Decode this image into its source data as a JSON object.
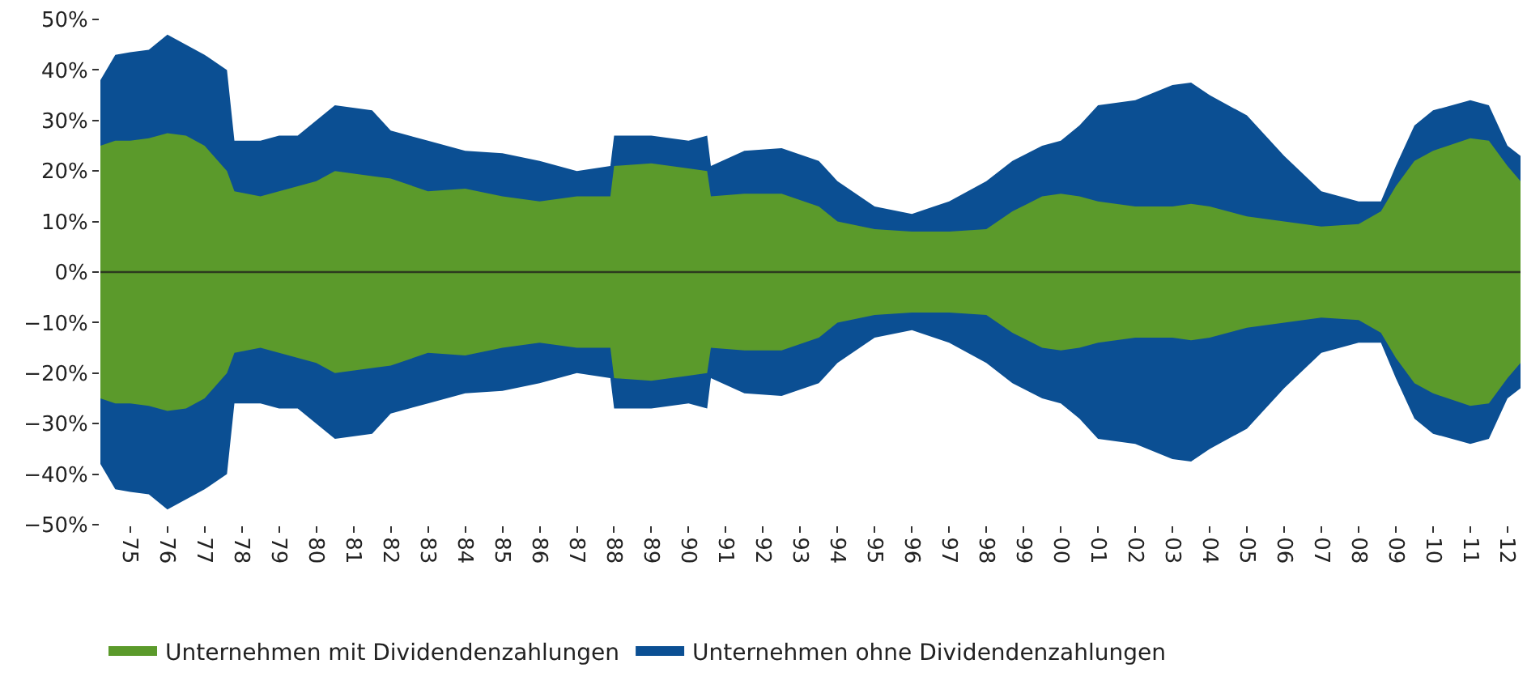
{
  "chart_data": {
    "type": "area",
    "legend": "bottom",
    "grid": false,
    "x": [
      1974.2,
      1974.6,
      1975.0,
      1975.5,
      1976.0,
      1976.5,
      1977.0,
      1977.6,
      1977.8,
      1978.5,
      1979.0,
      1979.5,
      1980.0,
      1980.5,
      1981.5,
      1982.0,
      1983.0,
      1984.0,
      1985.0,
      1986.0,
      1987.0,
      1987.9,
      1988.0,
      1989.0,
      1990.0,
      1990.5,
      1990.6,
      1991.5,
      1992.5,
      1993.5,
      1994.0,
      1995.0,
      1996.0,
      1997.0,
      1998.0,
      1998.7,
      1999.5,
      2000.0,
      2000.5,
      2001.0,
      2002.0,
      2003.0,
      2003.5,
      2004.0,
      2005.0,
      2006.0,
      2007.0,
      2008.0,
      2008.6,
      2009.0,
      2009.5,
      2010.0,
      2011.0,
      2011.5,
      2012.0,
      2012.35
    ],
    "series": [
      {
        "name": "Unternehmen mit Dividendenzahlungen",
        "color": "#5b9a2b",
        "values": [
          25,
          26,
          26,
          26.5,
          27.5,
          27,
          25,
          20,
          16,
          15,
          16,
          17,
          18,
          20,
          19,
          18.5,
          16,
          16.5,
          15,
          14,
          15,
          15,
          21,
          21.5,
          20.5,
          20,
          15,
          15.5,
          15.5,
          13,
          10,
          8.5,
          8,
          8,
          8.5,
          12,
          15,
          15.5,
          15,
          14,
          13,
          13,
          13.5,
          13,
          11,
          10,
          9,
          9.5,
          12,
          17,
          22,
          24,
          26.5,
          26,
          21,
          18
        ]
      },
      {
        "name": "Unternehmen ohne Dividendenzahlungen",
        "color": "#0b4f93",
        "values": [
          38,
          43,
          43.5,
          44,
          47,
          45,
          43,
          40,
          26,
          26,
          27,
          27,
          30,
          33,
          32,
          28,
          26,
          24,
          23.5,
          22,
          20,
          21,
          27,
          27,
          26,
          27,
          21,
          24,
          24.5,
          22,
          18,
          13,
          11.5,
          14,
          18,
          22,
          25,
          26,
          29,
          33,
          34,
          37,
          37.5,
          35,
          31,
          23,
          16,
          14,
          14,
          21,
          29,
          32,
          34,
          33,
          25,
          23
        ]
      },
      {
        "color": "#5b9a2b",
        "values": [
          -25,
          -26,
          -26,
          -26.5,
          -27.5,
          -27,
          -25,
          -20,
          -16,
          -15,
          -16,
          -17,
          -18,
          -20,
          -19,
          -18.5,
          -16,
          -16.5,
          -15,
          -14,
          -15,
          -15,
          -21,
          -21.5,
          -20.5,
          -20,
          -15,
          -15.5,
          -15.5,
          -13,
          -10,
          -8.5,
          -8,
          -8,
          -8.5,
          -12,
          -15,
          -15.5,
          -15,
          -14,
          -13,
          -13,
          -13.5,
          -13,
          -11,
          -10,
          -9,
          -9.5,
          -12,
          -17,
          -22,
          -24,
          -26.5,
          -26,
          -21,
          -18
        ]
      },
      {
        "color": "#0b4f93",
        "values": [
          -38,
          -43,
          -43.5,
          -44,
          -47,
          -45,
          -43,
          -40,
          -26,
          -26,
          -27,
          -27,
          -30,
          -33,
          -32,
          -28,
          -26,
          -24,
          -23.5,
          -22,
          -20,
          -21,
          -27,
          -27,
          -26,
          -27,
          -21,
          -24,
          -24.5,
          -22,
          -18,
          -13,
          -11.5,
          -14,
          -18,
          -22,
          -25,
          -26,
          -29,
          -33,
          -34,
          -37,
          -37.5,
          -35,
          -31,
          -23,
          -16,
          -14,
          -14,
          -21,
          -29,
          -32,
          -34,
          -33,
          -25,
          -23
        ]
      }
    ],
    "xlim": [
      1974.2,
      2012.35
    ],
    "xticks": [
      {
        "value": 1975,
        "label": "75"
      },
      {
        "value": 1976,
        "label": "76"
      },
      {
        "value": 1977,
        "label": "77"
      },
      {
        "value": 1978,
        "label": "78"
      },
      {
        "value": 1979,
        "label": "79"
      },
      {
        "value": 1980,
        "label": "80"
      },
      {
        "value": 1981,
        "label": "81"
      },
      {
        "value": 1982,
        "label": "82"
      },
      {
        "value": 1983,
        "label": "83"
      },
      {
        "value": 1984,
        "label": "84"
      },
      {
        "value": 1985,
        "label": "85"
      },
      {
        "value": 1986,
        "label": "86"
      },
      {
        "value": 1987,
        "label": "87"
      },
      {
        "value": 1988,
        "label": "88"
      },
      {
        "value": 1989,
        "label": "89"
      },
      {
        "value": 1990,
        "label": "90"
      },
      {
        "value": 1991,
        "label": "91"
      },
      {
        "value": 1992,
        "label": "92"
      },
      {
        "value": 1993,
        "label": "93"
      },
      {
        "value": 1994,
        "label": "94"
      },
      {
        "value": 1995,
        "label": "95"
      },
      {
        "value": 1996,
        "label": "96"
      },
      {
        "value": 1997,
        "label": "97"
      },
      {
        "value": 1998,
        "label": "98"
      },
      {
        "value": 1999,
        "label": "99"
      },
      {
        "value": 2000,
        "label": "00"
      },
      {
        "value": 2001,
        "label": "01"
      },
      {
        "value": 2002,
        "label": "02"
      },
      {
        "value": 2003,
        "label": "03"
      },
      {
        "value": 2004,
        "label": "04"
      },
      {
        "value": 2005,
        "label": "05"
      },
      {
        "value": 2006,
        "label": "06"
      },
      {
        "value": 2007,
        "label": "07"
      },
      {
        "value": 2008,
        "label": "08"
      },
      {
        "value": 2009,
        "label": "09"
      },
      {
        "value": 2010,
        "label": "10"
      },
      {
        "value": 2011,
        "label": "11"
      },
      {
        "value": 2012,
        "label": "12"
      }
    ],
    "ylim": [
      -50,
      50
    ],
    "yticks": [
      {
        "value": -50,
        "label": "−50%"
      },
      {
        "value": -40,
        "label": "−40%"
      },
      {
        "value": -30,
        "label": "−30%"
      },
      {
        "value": -20,
        "label": "−20%"
      },
      {
        "value": -10,
        "label": "−10%"
      },
      {
        "value": 0,
        "label": "0%"
      },
      {
        "value": 10,
        "label": "10%"
      },
      {
        "value": 20,
        "label": "20%"
      },
      {
        "value": 30,
        "label": "30%"
      },
      {
        "value": 40,
        "label": "40%"
      },
      {
        "value": 50,
        "label": "50%"
      }
    ],
    "ref_lines": [
      {
        "axis": "y",
        "value": 0,
        "color": "#2b3a1e"
      }
    ]
  }
}
